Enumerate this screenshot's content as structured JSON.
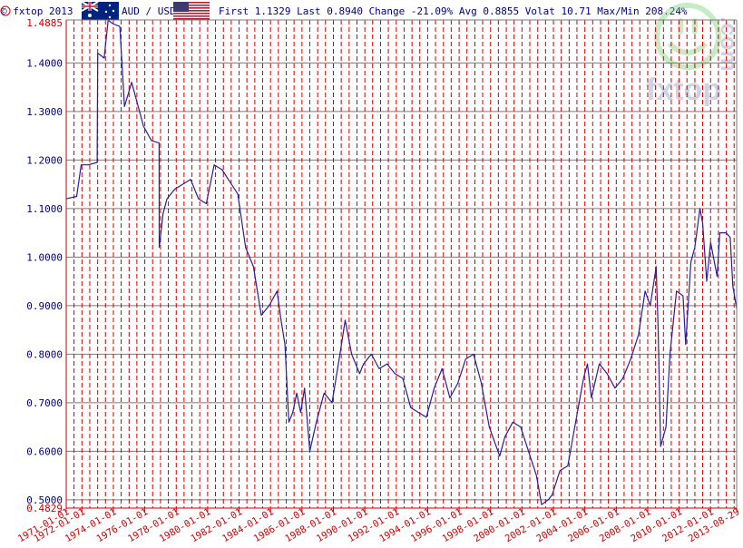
{
  "header": {
    "copyright": "© fxtop 2013",
    "pair": "AUD / USD",
    "stats": "First 1.1329 Last 0.8940 Change -21.09% Avg 0.8855 Volat 10.71 Max/Min 208.24%"
  },
  "watermark": {
    "logo": "fxtop",
    "domain": ".com"
  },
  "colors": {
    "line": "#2a1d9a",
    "grid_h": "#7a7a7a",
    "grid_v": "#cc0000",
    "axis_text_red": "#cc0000",
    "header_text": "#000080"
  },
  "chart_data": {
    "type": "line",
    "title": "AUD / USD",
    "ylim": [
      0.4829,
      1.4885
    ],
    "y_ticks": [
      0.5,
      0.6,
      0.7,
      0.8,
      0.9,
      1.0,
      1.1,
      1.2,
      1.3,
      1.4
    ],
    "y_tick_labels": [
      "0.5000",
      "0.6000",
      "0.7000",
      "0.8000",
      "0.9000",
      "1.0000",
      "1.1000",
      "1.2000",
      "1.3000",
      "1.4000"
    ],
    "y_extreme_labels": {
      "max": "1.4885",
      "min": "0.4829"
    },
    "x_range": [
      "1971-01-01",
      "2013-08-29"
    ],
    "x_tick_labels": [
      "1971-01-01",
      "1972-01-01",
      "1974-01-01",
      "1976-01-01",
      "1978-01-01",
      "1980-01-01",
      "1982-01-01",
      "1984-01-01",
      "1986-01-01",
      "1988-01-01",
      "1990-01-01",
      "1992-01-01",
      "1994-01-01",
      "1996-01-01",
      "1998-01-01",
      "2000-01-01",
      "2002-01-01",
      "2004-01-01",
      "2006-01-01",
      "2008-01-01",
      "2010-01-01",
      "2012-01-01",
      "2013-08-29"
    ],
    "grid": "on",
    "series": [
      {
        "name": "AUD / USD",
        "points": [
          [
            "1971-01-01",
            1.12
          ],
          [
            "1971-09-01",
            1.125
          ],
          [
            "1971-12-15",
            1.19
          ],
          [
            "1972-06-01",
            1.19
          ],
          [
            "1972-12-20",
            1.195
          ],
          [
            "1973-01-01",
            1.42
          ],
          [
            "1973-06-01",
            1.41
          ],
          [
            "1973-09-01",
            1.488
          ],
          [
            "1974-01-01",
            1.48
          ],
          [
            "1974-06-01",
            1.475
          ],
          [
            "1974-09-15",
            1.31
          ],
          [
            "1975-03-01",
            1.36
          ],
          [
            "1975-06-01",
            1.33
          ],
          [
            "1975-12-01",
            1.27
          ],
          [
            "1976-06-01",
            1.24
          ],
          [
            "1976-11-28",
            1.235
          ],
          [
            "1976-12-01",
            1.02
          ],
          [
            "1977-03-01",
            1.09
          ],
          [
            "1977-06-01",
            1.12
          ],
          [
            "1977-12-01",
            1.14
          ],
          [
            "1978-06-01",
            1.15
          ],
          [
            "1978-12-01",
            1.16
          ],
          [
            "1979-06-01",
            1.12
          ],
          [
            "1979-12-01",
            1.11
          ],
          [
            "1980-06-01",
            1.19
          ],
          [
            "1980-12-01",
            1.18
          ],
          [
            "1981-06-01",
            1.155
          ],
          [
            "1981-12-01",
            1.13
          ],
          [
            "1982-06-01",
            1.02
          ],
          [
            "1982-12-01",
            0.98
          ],
          [
            "1983-06-01",
            0.88
          ],
          [
            "1983-12-01",
            0.9
          ],
          [
            "1984-06-01",
            0.93
          ],
          [
            "1984-09-01",
            0.87
          ],
          [
            "1984-12-01",
            0.82
          ],
          [
            "1985-03-01",
            0.66
          ],
          [
            "1985-06-01",
            0.68
          ],
          [
            "1985-09-01",
            0.72
          ],
          [
            "1985-12-01",
            0.68
          ],
          [
            "1986-03-01",
            0.73
          ],
          [
            "1986-07-01",
            0.6
          ],
          [
            "1986-12-01",
            0.66
          ],
          [
            "1987-06-01",
            0.72
          ],
          [
            "1987-12-01",
            0.7
          ],
          [
            "1988-06-01",
            0.8
          ],
          [
            "1988-10-01",
            0.87
          ],
          [
            "1989-03-01",
            0.8
          ],
          [
            "1989-09-01",
            0.76
          ],
          [
            "1989-12-01",
            0.78
          ],
          [
            "1990-06-01",
            0.8
          ],
          [
            "1990-12-01",
            0.77
          ],
          [
            "1991-06-01",
            0.78
          ],
          [
            "1991-12-01",
            0.76
          ],
          [
            "1992-06-01",
            0.75
          ],
          [
            "1992-12-01",
            0.69
          ],
          [
            "1993-06-01",
            0.68
          ],
          [
            "1993-12-01",
            0.67
          ],
          [
            "1994-06-01",
            0.73
          ],
          [
            "1994-12-01",
            0.77
          ],
          [
            "1995-06-01",
            0.71
          ],
          [
            "1995-12-01",
            0.74
          ],
          [
            "1996-06-01",
            0.79
          ],
          [
            "1996-12-01",
            0.8
          ],
          [
            "1997-06-01",
            0.74
          ],
          [
            "1997-12-01",
            0.65
          ],
          [
            "1998-08-01",
            0.59
          ],
          [
            "1998-12-01",
            0.63
          ],
          [
            "1999-06-01",
            0.66
          ],
          [
            "1999-12-01",
            0.65
          ],
          [
            "2000-06-01",
            0.6
          ],
          [
            "2000-12-01",
            0.55
          ],
          [
            "2001-04-01",
            0.49
          ],
          [
            "2001-09-01",
            0.5
          ],
          [
            "2001-12-01",
            0.51
          ],
          [
            "2002-06-01",
            0.56
          ],
          [
            "2002-12-01",
            0.57
          ],
          [
            "2003-06-01",
            0.66
          ],
          [
            "2003-12-01",
            0.75
          ],
          [
            "2004-03-01",
            0.78
          ],
          [
            "2004-06-01",
            0.71
          ],
          [
            "2004-12-01",
            0.78
          ],
          [
            "2005-06-01",
            0.76
          ],
          [
            "2005-12-01",
            0.73
          ],
          [
            "2006-06-01",
            0.75
          ],
          [
            "2006-12-01",
            0.79
          ],
          [
            "2007-06-01",
            0.84
          ],
          [
            "2007-11-01",
            0.93
          ],
          [
            "2008-03-01",
            0.9
          ],
          [
            "2008-07-15",
            0.98
          ],
          [
            "2008-09-01",
            0.85
          ],
          [
            "2008-10-27",
            0.61
          ],
          [
            "2009-03-01",
            0.65
          ],
          [
            "2009-06-01",
            0.8
          ],
          [
            "2009-11-01",
            0.93
          ],
          [
            "2010-04-01",
            0.92
          ],
          [
            "2010-06-01",
            0.82
          ],
          [
            "2010-10-01",
            0.99
          ],
          [
            "2010-12-31",
            1.02
          ],
          [
            "2011-04-28",
            1.1
          ],
          [
            "2011-07-01",
            1.07
          ],
          [
            "2011-10-04",
            0.95
          ],
          [
            "2012-01-01",
            1.03
          ],
          [
            "2012-06-01",
            0.96
          ],
          [
            "2012-08-01",
            1.05
          ],
          [
            "2013-01-01",
            1.05
          ],
          [
            "2013-04-01",
            1.04
          ],
          [
            "2013-06-01",
            0.94
          ],
          [
            "2013-08-29",
            0.894
          ]
        ]
      }
    ]
  }
}
